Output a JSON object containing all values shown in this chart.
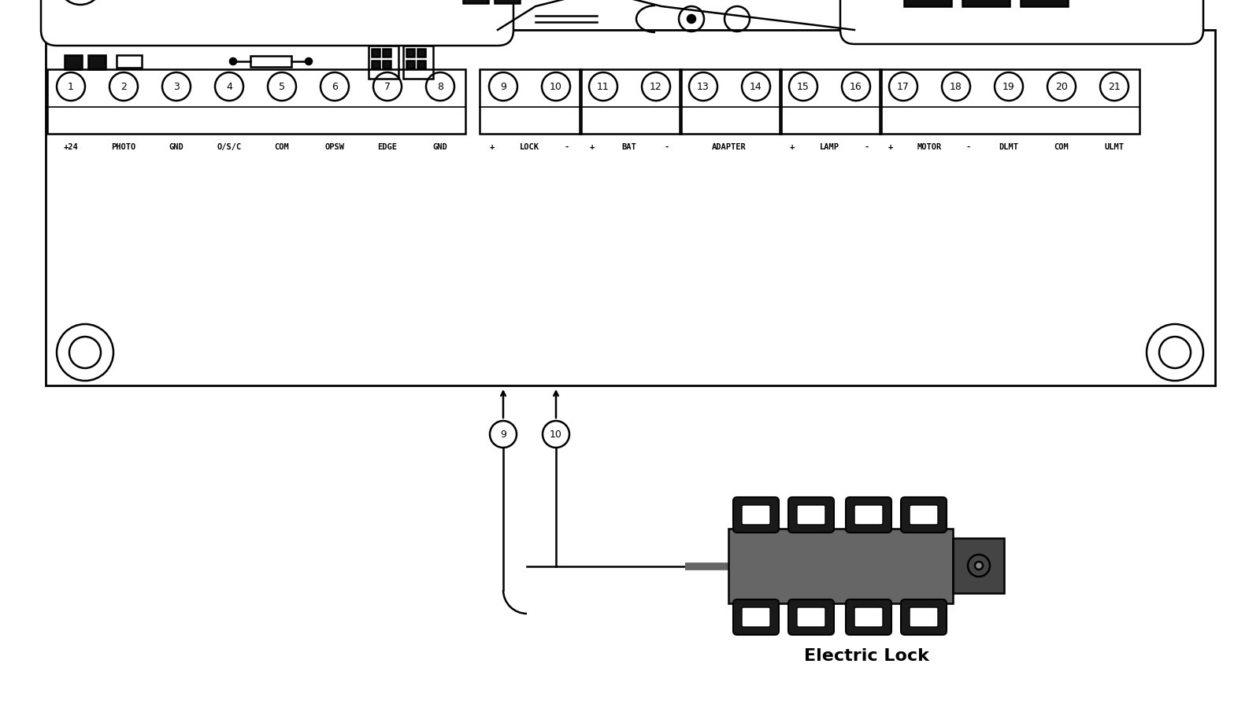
{
  "bg_color": "#ffffff",
  "lc": "#000000",
  "gray": "#666666",
  "dark_gray": "#444444",
  "bracket_dark": "#1a1a1a",
  "chip_dark": "#111111",
  "labels_g1": [
    "+24",
    "PHOTO",
    "GND",
    "O/S/C",
    "COM",
    "OPSW",
    "EDGE",
    "GND"
  ],
  "label_g2_plus": "+",
  "label_g2_mid": "LOCK",
  "label_g2_minus": "-",
  "label_g3_plus": "+",
  "label_g3_mid": "BAT",
  "label_g3_minus": "-",
  "label_g4": "ADAPTER",
  "label_g5_plus": "+",
  "label_g5_mid": "LAMP",
  "label_g5_minus": "-",
  "label_g6": [
    "+",
    "MOTOR",
    "-",
    "DLMT",
    "COM",
    "ULMT"
  ],
  "electric_lock_label": "Electric Lock"
}
